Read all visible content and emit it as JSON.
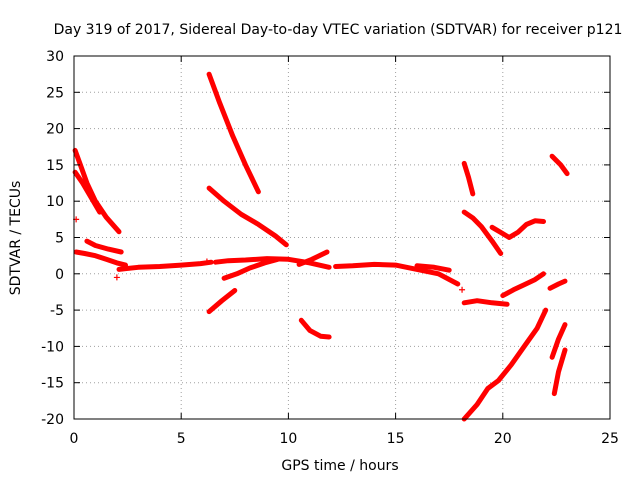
{
  "chart_data": {
    "type": "scatter",
    "title": "Day 319 of 2017, Sidereal Day-to-day VTEC variation (SDTVAR) for receiver p121",
    "xlabel": "GPS time / hours",
    "ylabel": "SDTVAR / TECUs",
    "xlim": [
      0,
      25
    ],
    "ylim": [
      -20,
      30
    ],
    "xticks": [
      "0",
      "5",
      "10",
      "15",
      "20",
      "25"
    ],
    "yticks": [
      "-20",
      "-15",
      "-10",
      "-5",
      "0",
      "5",
      "10",
      "15",
      "20",
      "25",
      "30"
    ],
    "grid": true,
    "color": "#ff0000",
    "series": [
      {
        "x": [
          0.05,
          0.3,
          0.6,
          1.0,
          1.5,
          2.1
        ],
        "y": [
          17.0,
          15.0,
          12.5,
          10.0,
          7.8,
          5.8
        ]
      },
      {
        "x": [
          0.05,
          0.4,
          0.8,
          1.2
        ],
        "y": [
          14.0,
          12.5,
          10.5,
          8.5
        ]
      },
      {
        "x": [
          0.1,
          0.5,
          1.0,
          1.5,
          2.0,
          2.4
        ],
        "y": [
          3.0,
          2.8,
          2.5,
          2.0,
          1.5,
          1.2
        ]
      },
      {
        "x": [
          0.6,
          1.0,
          1.6,
          2.2
        ],
        "y": [
          4.5,
          3.9,
          3.4,
          3.0
        ]
      },
      {
        "x": [
          2.1,
          3.0,
          4.0,
          5.0,
          5.9,
          6.4
        ],
        "y": [
          0.6,
          0.9,
          1.0,
          1.2,
          1.4,
          1.6
        ]
      },
      {
        "x": [
          6.3,
          6.8,
          7.4,
          8.0,
          8.6
        ],
        "y": [
          27.5,
          23.5,
          19.0,
          15.0,
          11.3
        ]
      },
      {
        "x": [
          6.3,
          7.0,
          7.8,
          8.6,
          9.4,
          9.9
        ],
        "y": [
          11.8,
          10.0,
          8.2,
          6.8,
          5.2,
          4.0
        ]
      },
      {
        "x": [
          6.6,
          7.2,
          8.0,
          9.0,
          10.0,
          11.0,
          11.9
        ],
        "y": [
          1.6,
          1.8,
          1.9,
          2.1,
          2.0,
          1.5,
          0.9
        ]
      },
      {
        "x": [
          7.0,
          7.6,
          8.2,
          8.9,
          9.5
        ],
        "y": [
          -0.6,
          0.0,
          0.8,
          1.5,
          2.0
        ]
      },
      {
        "x": [
          6.3,
          6.9,
          7.5
        ],
        "y": [
          -5.2,
          -3.7,
          -2.3
        ]
      },
      {
        "x": [
          10.5,
          11.1,
          11.8
        ],
        "y": [
          1.3,
          2.0,
          3.0
        ]
      },
      {
        "x": [
          10.6,
          11.0,
          11.5,
          11.9
        ],
        "y": [
          -6.4,
          -7.8,
          -8.6,
          -8.7
        ]
      },
      {
        "x": [
          12.2,
          13.0,
          14.0,
          15.0,
          16.0,
          17.0,
          17.9
        ],
        "y": [
          1.0,
          1.1,
          1.3,
          1.2,
          0.6,
          0.0,
          -1.4
        ]
      },
      {
        "x": [
          16.0,
          16.8,
          17.5
        ],
        "y": [
          1.1,
          0.9,
          0.5
        ]
      },
      {
        "x": [
          18.2,
          18.8,
          19.5,
          20.2
        ],
        "y": [
          -4.0,
          -3.7,
          -4.0,
          -4.2
        ]
      },
      {
        "x": [
          20.0,
          20.5,
          21.0,
          21.5,
          21.9
        ],
        "y": [
          -3.0,
          -2.2,
          -1.5,
          -0.8,
          0.0
        ]
      },
      {
        "x": [
          18.2,
          18.6,
          19.0,
          19.5,
          19.9
        ],
        "y": [
          8.5,
          7.7,
          6.5,
          4.5,
          2.8
        ]
      },
      {
        "x": [
          19.5,
          19.9,
          20.3,
          20.7,
          21.1,
          21.5,
          21.9
        ],
        "y": [
          6.4,
          5.7,
          5.0,
          5.7,
          6.8,
          7.3,
          7.2
        ]
      },
      {
        "x": [
          18.2,
          18.4,
          18.6
        ],
        "y": [
          15.2,
          13.3,
          11.0
        ]
      },
      {
        "x": [
          18.2,
          18.8,
          19.3,
          19.8,
          20.4,
          21.0,
          21.6,
          22.0
        ],
        "y": [
          -20.0,
          -18.0,
          -15.8,
          -14.7,
          -12.5,
          -10.0,
          -7.5,
          -5.0
        ]
      },
      {
        "x": [
          22.3,
          22.7,
          23.0
        ],
        "y": [
          16.2,
          15.0,
          13.8
        ]
      },
      {
        "x": [
          22.2,
          22.6,
          22.9
        ],
        "y": [
          -2.0,
          -1.4,
          -1.0
        ]
      },
      {
        "x": [
          22.3,
          22.6,
          22.9
        ],
        "y": [
          -11.5,
          -9.0,
          -7.0
        ]
      },
      {
        "x": [
          22.4,
          22.6,
          22.9
        ],
        "y": [
          -16.5,
          -13.5,
          -10.5
        ]
      }
    ],
    "points": [
      {
        "x": 0.1,
        "y": 7.5
      },
      {
        "x": 2.0,
        "y": -0.5
      },
      {
        "x": 6.2,
        "y": 1.7
      },
      {
        "x": 18.1,
        "y": -2.2
      }
    ]
  }
}
